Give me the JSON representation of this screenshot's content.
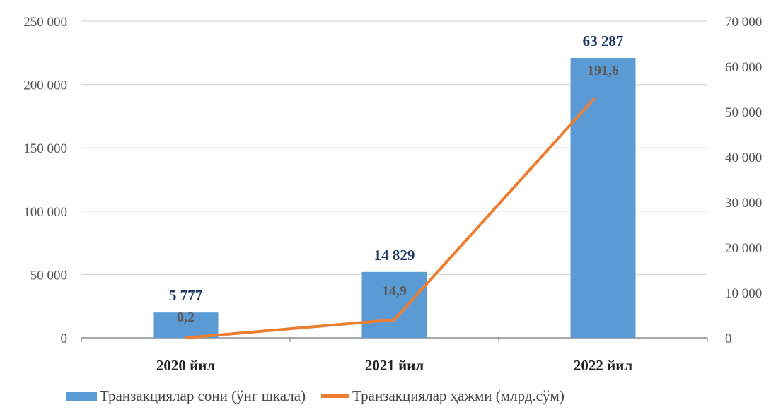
{
  "chart_data": {
    "type": "bar+line",
    "categories": [
      "2020 йил",
      "2021 йил",
      "2022 йил"
    ],
    "series": [
      {
        "name": "Транзакциялар сони (ўнг шкала)",
        "type": "bar",
        "axis": "left",
        "values": [
          20000,
          52000,
          221000
        ],
        "labels": [
          "5 777",
          "14 829",
          "63 287"
        ],
        "color": "#5b9bd5"
      },
      {
        "name": "Транзакциялар ҳажми (млрд.сўм)",
        "type": "line",
        "axis": "right",
        "values": [
          0,
          4000,
          53000
        ],
        "labels": [
          "0,2",
          "14,9",
          "191,6"
        ],
        "color": "#ed7d31"
      }
    ],
    "y_left": {
      "min": 0,
      "max": 250000,
      "step": 50000,
      "ticks": [
        "0",
        "50 000",
        "100 000",
        "150 000",
        "200 000",
        "250 000"
      ]
    },
    "y_right": {
      "min": 0,
      "max": 70000,
      "step": 10000,
      "ticks": [
        "0",
        "10 000",
        "20 000",
        "30 000",
        "40 000",
        "50 000",
        "60 000",
        "70 000"
      ]
    },
    "grid": true,
    "legend": "bottom"
  }
}
